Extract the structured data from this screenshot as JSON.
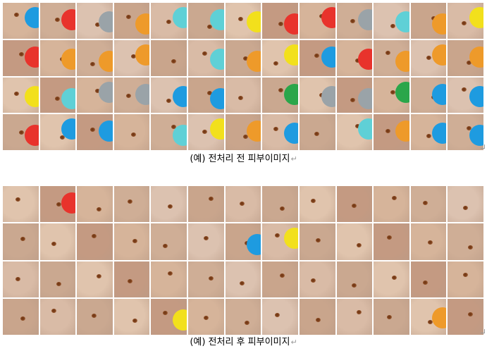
{
  "figure_before": {
    "caption": "(예) 전처리 전 피부이미지",
    "paragraph_mark": "↵",
    "colors": {
      "skin": [
        "#d6b49a",
        "#c9a58c",
        "#e0c4ad",
        "#cfae96",
        "#d9bba6",
        "#c49a82",
        "#dcc2b0",
        "#caa890"
      ],
      "stickers": {
        "blue": "#1e9be0",
        "red": "#e8332c",
        "yellow": "#f2e01c",
        "orange": "#ee9a2a",
        "green": "#2aa64a",
        "teal": "#5fd0d6",
        "gray": "#9aa3a8"
      }
    }
  },
  "figure_after": {
    "caption": "(예) 전처리 후 피부이미지",
    "paragraph_mark": "↵"
  }
}
